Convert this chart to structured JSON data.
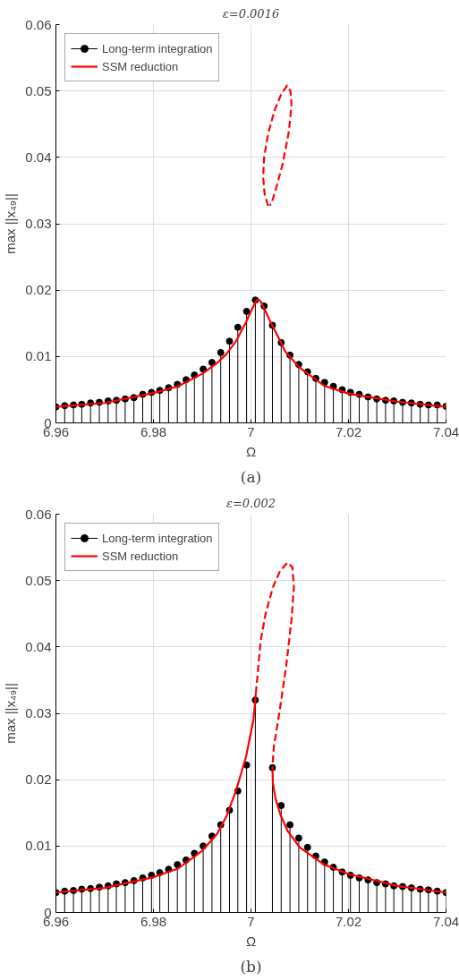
{
  "chart_data": [
    {
      "type": "lollipop",
      "title": "ε=0.0016",
      "xlabel": "Ω",
      "ylabel": "max ||x₄₉||",
      "annotations": [
        "(a)"
      ],
      "xlim": [
        6.96,
        7.04
      ],
      "ylim": [
        0,
        0.06
      ],
      "xticks": [
        6.96,
        6.98,
        7,
        7.02,
        7.04
      ],
      "yticks": [
        0,
        0.01,
        0.02,
        0.03,
        0.04,
        0.05,
        0.06
      ],
      "grid": true,
      "legend": "top left",
      "series": [
        {
          "name": "Long-term integration",
          "color": "#000000",
          "marker": "circle",
          "x": [
            6.96,
            6.9618,
            6.9636,
            6.9653,
            6.9671,
            6.9689,
            6.9707,
            6.9724,
            6.9742,
            6.976,
            6.9778,
            6.9796,
            6.9813,
            6.9831,
            6.9849,
            6.9867,
            6.9884,
            6.9902,
            6.992,
            6.9938,
            6.9956,
            6.9973,
            6.9991,
            7.0009,
            7.0027,
            7.0044,
            7.0062,
            7.008,
            7.0098,
            7.0116,
            7.0133,
            7.0151,
            7.0169,
            7.0187,
            7.0204,
            7.0222,
            7.024,
            7.0258,
            7.0276,
            7.0293,
            7.0311,
            7.0329,
            7.0347,
            7.0364,
            7.0382,
            7.04
          ],
          "values": [
            0.0024,
            0.0026,
            0.0027,
            0.0028,
            0.003,
            0.0031,
            0.0033,
            0.0034,
            0.0036,
            0.0038,
            0.0043,
            0.0046,
            0.0049,
            0.0053,
            0.0058,
            0.0065,
            0.0072,
            0.0081,
            0.0091,
            0.0106,
            0.0123,
            0.0144,
            0.0168,
            0.0185,
            0.0176,
            0.0147,
            0.0121,
            0.0102,
            0.0088,
            0.0077,
            0.0067,
            0.0061,
            0.0055,
            0.005,
            0.0046,
            0.0043,
            0.0039,
            0.0036,
            0.0034,
            0.0033,
            0.0031,
            0.003,
            0.0028,
            0.0027,
            0.0027,
            0.0025
          ]
        },
        {
          "name": "SSM reduction",
          "type": "line",
          "color": "#ff0000",
          "line_style": "solid",
          "x": [
            6.96,
            6.97,
            6.98,
            6.985,
            6.99,
            6.993,
            6.995,
            6.997,
            6.999,
            7.0,
            7.001,
            7.0015,
            7.002,
            7.003,
            7.004,
            7.005,
            7.007,
            7.01,
            7.015,
            7.02,
            7.03,
            7.04
          ],
          "values": [
            0.0024,
            0.003,
            0.0045,
            0.0055,
            0.0074,
            0.009,
            0.0104,
            0.0124,
            0.0152,
            0.0168,
            0.0183,
            0.0186,
            0.0183,
            0.0168,
            0.0152,
            0.0138,
            0.0108,
            0.0083,
            0.0056,
            0.0044,
            0.0032,
            0.0024
          ]
        },
        {
          "type": "line",
          "color": "#ff0000",
          "line_style": "dashed",
          "x": [
            7.0035,
            7.0028,
            7.0025,
            7.0027,
            7.0035,
            7.0048,
            7.0062,
            7.0074,
            7.0081,
            7.0083,
            7.0078,
            7.0065,
            7.0052,
            7.0042,
            7.0038
          ],
          "values": [
            0.0327,
            0.0345,
            0.037,
            0.04,
            0.0435,
            0.047,
            0.0495,
            0.0508,
            0.05,
            0.048,
            0.044,
            0.039,
            0.0355,
            0.033,
            0.0328
          ]
        }
      ]
    },
    {
      "type": "lollipop",
      "title": "ε=0.002",
      "xlabel": "Ω",
      "ylabel": "max ||x₄₉||",
      "annotations": [
        "(b)"
      ],
      "xlim": [
        6.96,
        7.04
      ],
      "ylim": [
        0,
        0.06
      ],
      "xticks": [
        6.96,
        6.98,
        7,
        7.02,
        7.04
      ],
      "yticks": [
        0,
        0.01,
        0.02,
        0.03,
        0.04,
        0.05,
        0.06
      ],
      "grid": true,
      "legend": "top left",
      "series": [
        {
          "name": "Long-term integration",
          "color": "#000000",
          "marker": "circle",
          "x": [
            6.96,
            6.9618,
            6.9636,
            6.9653,
            6.9671,
            6.9689,
            6.9707,
            6.9724,
            6.9742,
            6.976,
            6.9778,
            6.9796,
            6.9813,
            6.9831,
            6.9849,
            6.9867,
            6.9884,
            6.9902,
            6.992,
            6.9938,
            6.9956,
            6.9973,
            6.9991,
            7.0009,
            7.0027,
            7.0044,
            7.0062,
            7.008,
            7.0098,
            7.0116,
            7.0133,
            7.0151,
            7.0169,
            7.0187,
            7.0204,
            7.0222,
            7.024,
            7.0258,
            7.0276,
            7.0293,
            7.0311,
            7.0329,
            7.0347,
            7.0364,
            7.0382,
            7.04
          ],
          "values": [
            0.003,
            0.0032,
            0.0033,
            0.0035,
            0.0036,
            0.0038,
            0.004,
            0.0043,
            0.0045,
            0.0048,
            0.0052,
            0.0056,
            0.006,
            0.0065,
            0.0072,
            0.0079,
            0.0089,
            0.01,
            0.0115,
            0.0132,
            0.0154,
            0.0183,
            0.0222,
            0.032,
            null,
            0.0218,
            0.0161,
            0.0132,
            0.0112,
            0.0098,
            0.0085,
            0.0076,
            0.0068,
            0.0061,
            0.0056,
            0.0052,
            0.0049,
            0.0045,
            0.0043,
            0.004,
            0.0039,
            0.0037,
            0.0035,
            0.0034,
            0.0032,
            0.003
          ]
        },
        {
          "name": "SSM reduction",
          "type": "line",
          "color": "#ff0000",
          "line_style": "solid",
          "x": [
            6.96,
            6.97,
            6.98,
            6.985,
            6.99,
            6.993,
            6.995,
            6.997,
            6.999,
            7.0005,
            7.001
          ],
          "values": [
            0.003,
            0.0037,
            0.0053,
            0.0066,
            0.0093,
            0.0118,
            0.0145,
            0.0185,
            0.0235,
            0.029,
            0.033
          ]
        },
        {
          "type": "line",
          "color": "#ff0000",
          "line_style": "dashed",
          "x": [
            7.001,
            7.0015,
            7.002,
            7.003,
            7.0045,
            7.006,
            7.0075,
            7.0085,
            7.0088,
            7.0083,
            7.0072,
            7.0058,
            7.0047,
            7.0044
          ],
          "values": [
            0.033,
            0.037,
            0.041,
            0.045,
            0.049,
            0.0515,
            0.0527,
            0.052,
            0.049,
            0.044,
            0.037,
            0.03,
            0.025,
            0.022
          ]
        },
        {
          "type": "line",
          "color": "#ff0000",
          "line_style": "solid",
          "x": [
            7.0044,
            7.0045,
            7.005,
            7.006,
            7.0075,
            7.01,
            7.015,
            7.02,
            7.03,
            7.04
          ],
          "values": [
            0.022,
            0.0195,
            0.0172,
            0.0148,
            0.0123,
            0.0098,
            0.0072,
            0.0058,
            0.004,
            0.003
          ]
        }
      ]
    }
  ]
}
